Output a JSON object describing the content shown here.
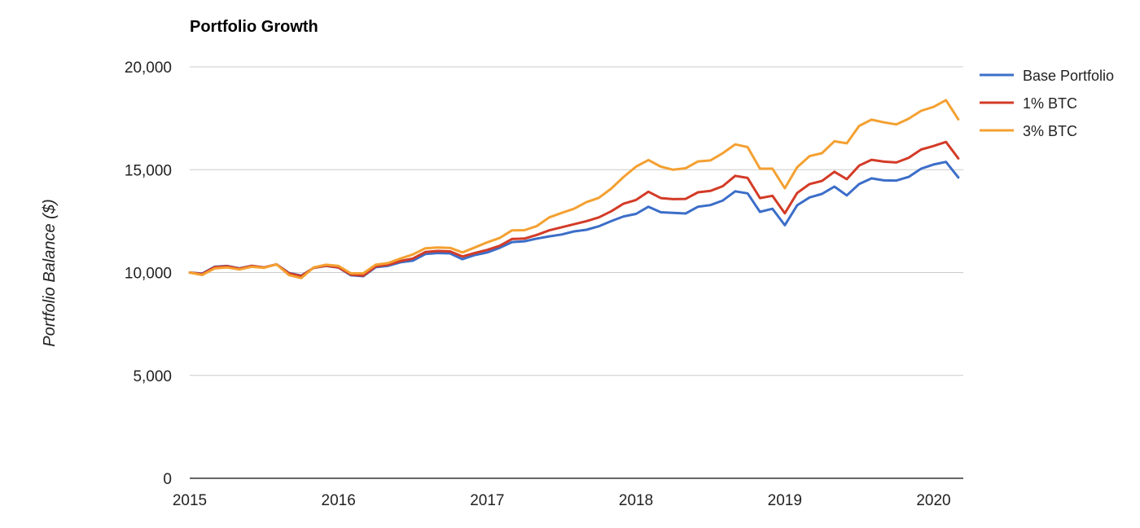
{
  "chart_data": {
    "type": "line",
    "title": "Portfolio Growth",
    "xlabel": "",
    "ylabel": "Portfolio Balance ($)",
    "xlim": [
      2015,
      2020.2
    ],
    "ylim": [
      0,
      20000
    ],
    "grid": true,
    "legend_position": "right",
    "x_ticks": [
      {
        "value": 2015,
        "label": "2015"
      },
      {
        "value": 2016,
        "label": "2016"
      },
      {
        "value": 2017,
        "label": "2017"
      },
      {
        "value": 2018,
        "label": "2018"
      },
      {
        "value": 2019,
        "label": "2019"
      },
      {
        "value": 2020,
        "label": "2020"
      }
    ],
    "y_ticks": [
      {
        "value": 0,
        "label": "0"
      },
      {
        "value": 5000,
        "label": "5,000"
      },
      {
        "value": 10000,
        "label": "10,000"
      },
      {
        "value": 15000,
        "label": "15,000"
      },
      {
        "value": 20000,
        "label": "20,000"
      }
    ],
    "x": [
      2015.0,
      2015.0833,
      2015.1667,
      2015.25,
      2015.3333,
      2015.4167,
      2015.5,
      2015.5833,
      2015.6667,
      2015.75,
      2015.8333,
      2015.9167,
      2016.0,
      2016.0833,
      2016.1667,
      2016.25,
      2016.3333,
      2016.4167,
      2016.5,
      2016.5833,
      2016.6667,
      2016.75,
      2016.8333,
      2016.9167,
      2017.0,
      2017.0833,
      2017.1667,
      2017.25,
      2017.3333,
      2017.4167,
      2017.5,
      2017.5833,
      2017.6667,
      2017.75,
      2017.8333,
      2017.9167,
      2018.0,
      2018.0833,
      2018.1667,
      2018.25,
      2018.3333,
      2018.4167,
      2018.5,
      2018.5833,
      2018.6667,
      2018.75,
      2018.8333,
      2018.9167,
      2019.0,
      2019.0833,
      2019.1667,
      2019.25,
      2019.3333,
      2019.4167,
      2019.5,
      2019.5833,
      2019.6667,
      2019.75,
      2019.8333,
      2019.9167,
      2020.0,
      2020.0833,
      2020.1667
    ],
    "series": [
      {
        "name": "Base Portfolio",
        "color": "#3c6ec8",
        "values": [
          10000,
          9950,
          10280,
          10320,
          10200,
          10330,
          10250,
          10400,
          9980,
          9850,
          10230,
          10320,
          10240,
          9870,
          9820,
          10260,
          10330,
          10500,
          10580,
          10900,
          10950,
          10930,
          10650,
          10850,
          10980,
          11200,
          11480,
          11520,
          11650,
          11760,
          11850,
          12000,
          12080,
          12250,
          12500,
          12730,
          12850,
          13200,
          12930,
          12900,
          12870,
          13200,
          13280,
          13500,
          13950,
          13850,
          12950,
          13100,
          12300,
          13270,
          13650,
          13820,
          14180,
          13750,
          14300,
          14580,
          14480,
          14470,
          14650,
          15050,
          15250,
          15380,
          14620
        ]
      },
      {
        "name": "1% BTC",
        "color": "#d33b27",
        "values": [
          10000,
          9930,
          10260,
          10310,
          10190,
          10320,
          10250,
          10400,
          9960,
          9830,
          10230,
          10330,
          10250,
          9900,
          9850,
          10300,
          10380,
          10560,
          10680,
          11000,
          11050,
          11030,
          10780,
          10950,
          11100,
          11300,
          11630,
          11650,
          11830,
          12050,
          12200,
          12350,
          12500,
          12680,
          12980,
          13350,
          13530,
          13930,
          13620,
          13570,
          13580,
          13900,
          13970,
          14200,
          14700,
          14600,
          13620,
          13730,
          12880,
          13870,
          14300,
          14450,
          14900,
          14540,
          15200,
          15480,
          15390,
          15350,
          15580,
          15980,
          16150,
          16350,
          15550
        ]
      },
      {
        "name": "3% BTC",
        "color": "#f4a031",
        "values": [
          10000,
          9880,
          10200,
          10250,
          10150,
          10280,
          10230,
          10400,
          9880,
          9730,
          10250,
          10380,
          10320,
          9960,
          9960,
          10380,
          10460,
          10680,
          10880,
          11180,
          11220,
          11200,
          10980,
          11220,
          11470,
          11680,
          12050,
          12060,
          12260,
          12680,
          12900,
          13100,
          13420,
          13630,
          14080,
          14650,
          15150,
          15470,
          15150,
          15000,
          15070,
          15400,
          15450,
          15800,
          16230,
          16100,
          15050,
          15050,
          14100,
          15120,
          15660,
          15800,
          16380,
          16280,
          17130,
          17430,
          17300,
          17200,
          17480,
          17860,
          18050,
          18380,
          17450
        ]
      }
    ]
  }
}
